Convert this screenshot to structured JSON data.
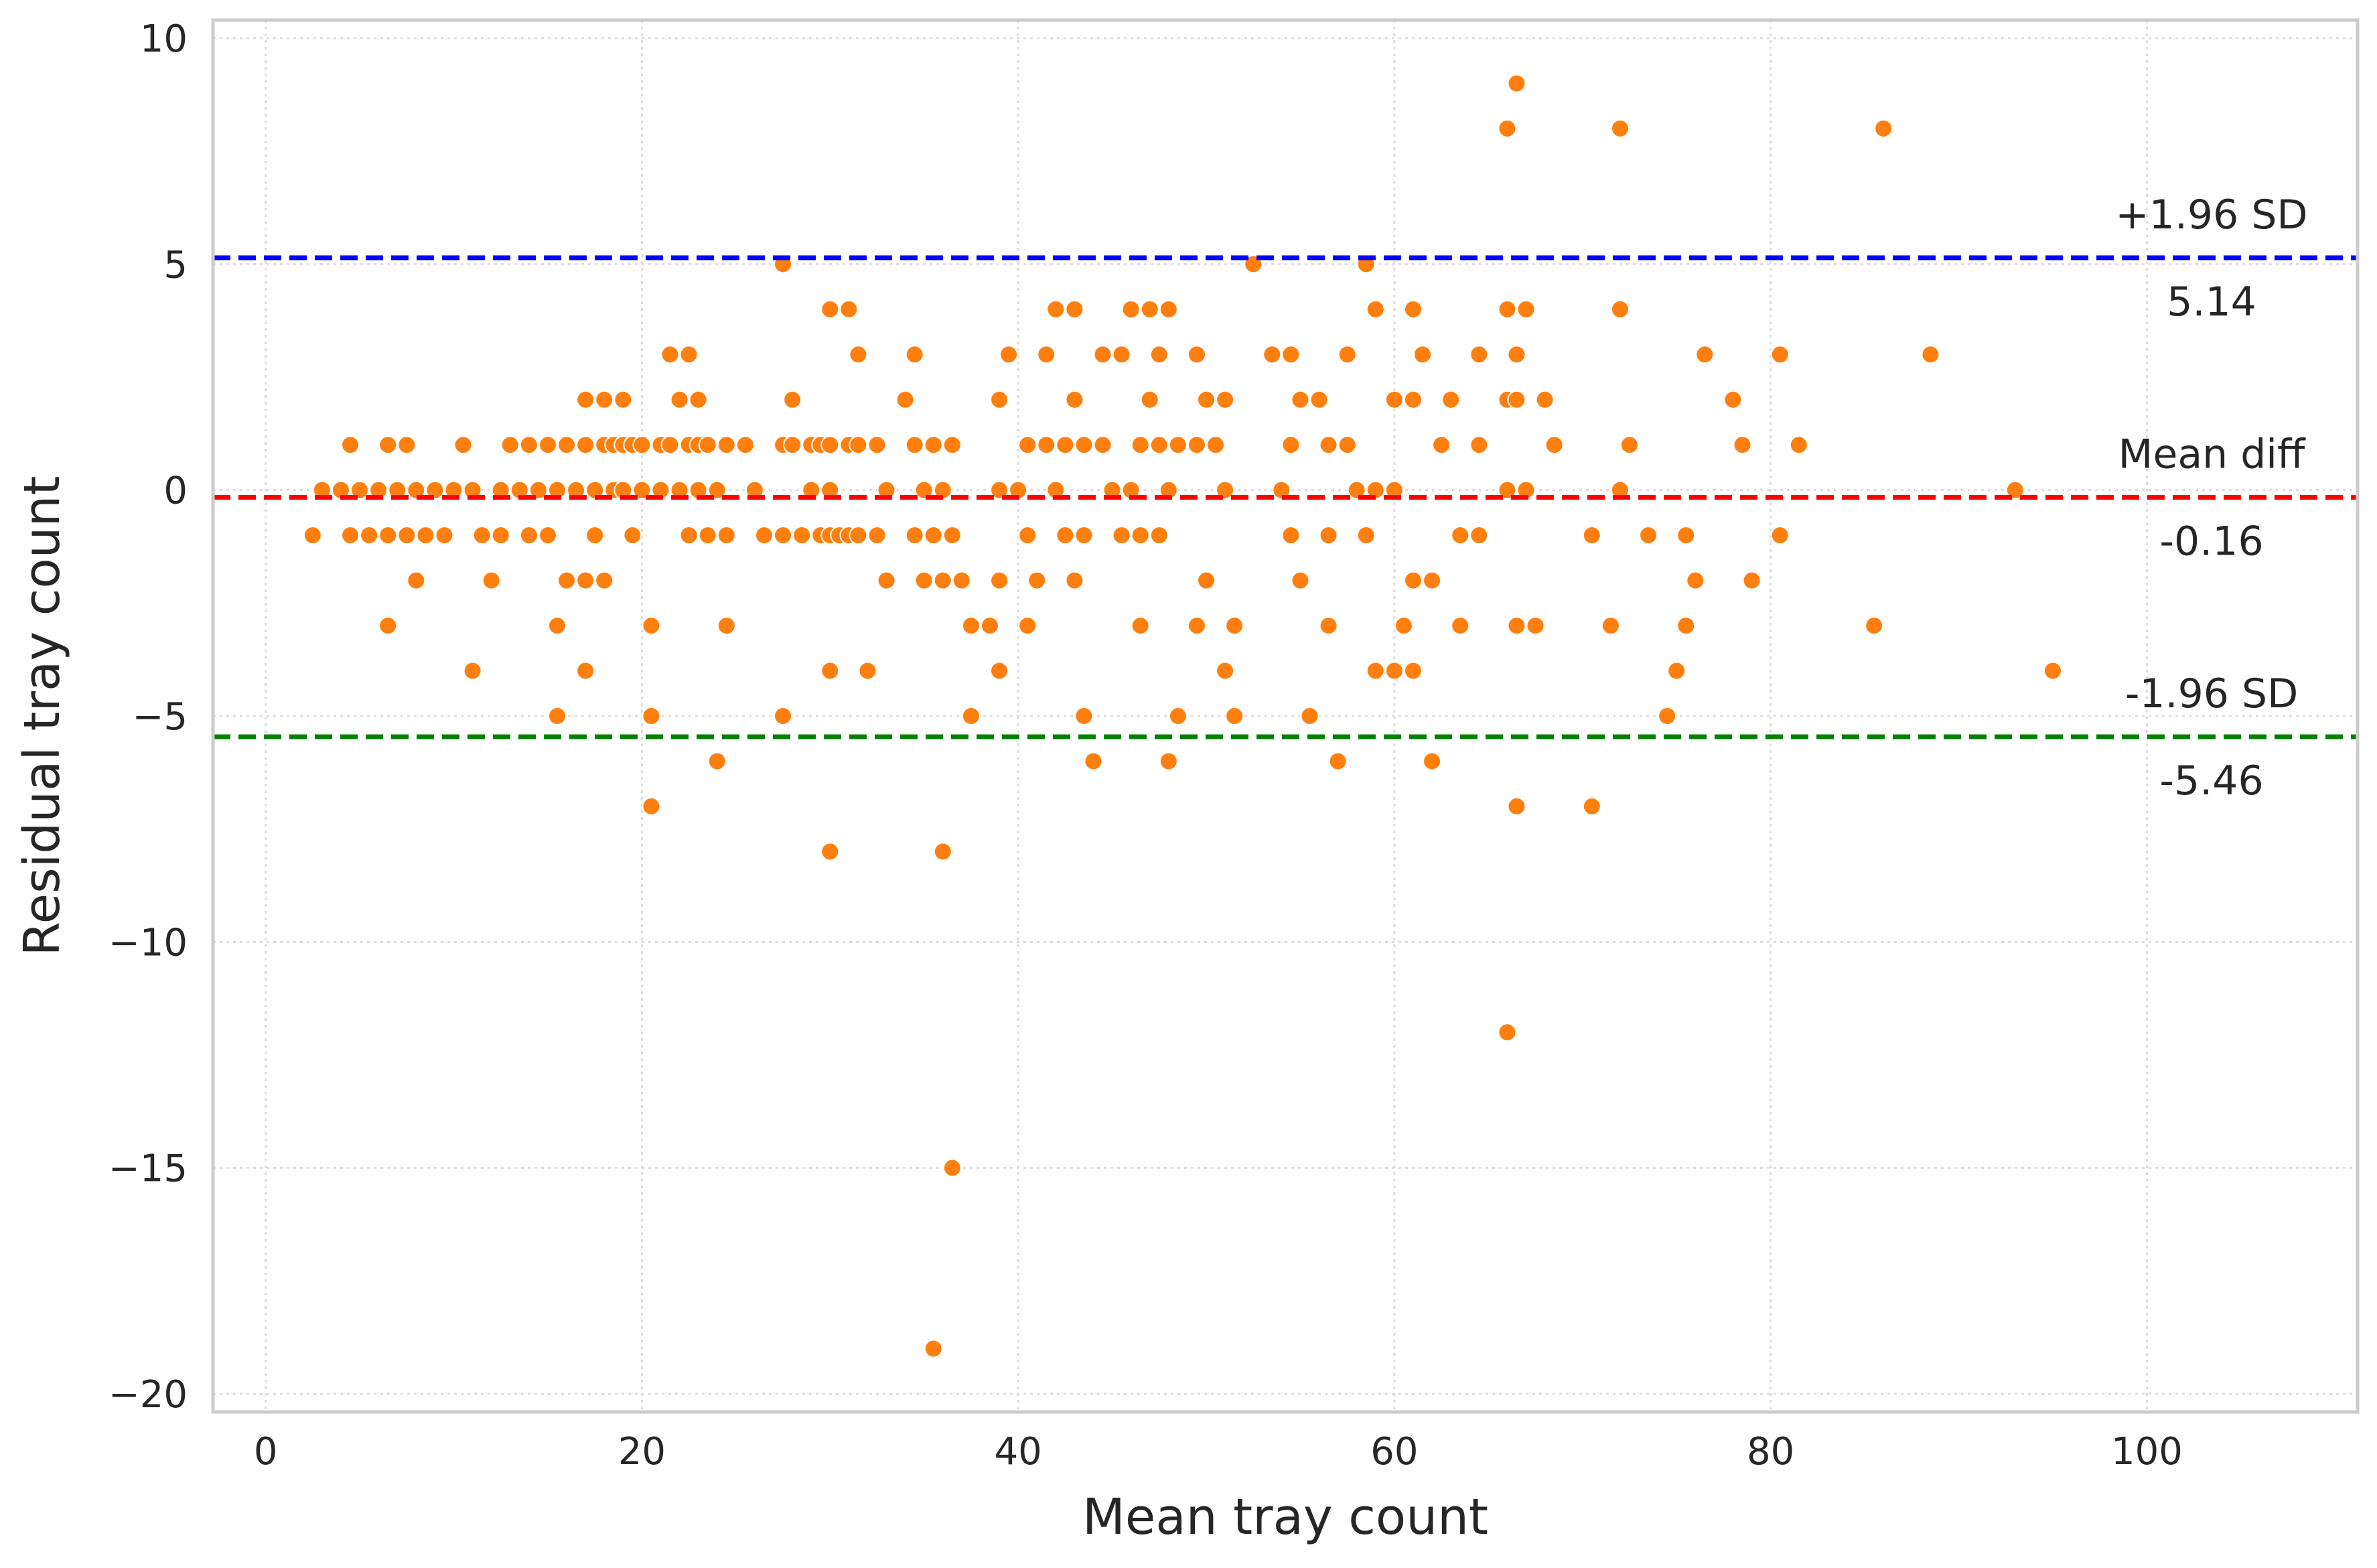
{
  "chart_data": {
    "type": "scatter",
    "title": "",
    "xlabel": "Mean tray count",
    "ylabel": "Residual tray count",
    "xlim": [
      -2.8,
      111.2
    ],
    "ylim": [
      -20.4,
      10.4
    ],
    "x_ticks": [
      0,
      20,
      40,
      60,
      80,
      100
    ],
    "y_ticks": [
      -20,
      -15,
      -10,
      -5,
      0,
      5,
      10
    ],
    "x_tick_labels": [
      "0",
      "20",
      "40",
      "60",
      "80",
      "100"
    ],
    "y_tick_labels": [
      "−20",
      "−15",
      "−10",
      "−5",
      "0",
      "5",
      "10"
    ],
    "grid": true,
    "marker_color": "#ff7f0e",
    "reference_lines": [
      {
        "label": "+1.96 SD",
        "value_text": "5.14",
        "y": 5.14,
        "color": "#0000ff",
        "style": "dashed"
      },
      {
        "label": "Mean diff",
        "value_text": "-0.16",
        "y": -0.16,
        "color": "#ff0000",
        "style": "dashed"
      },
      {
        "label": "-1.96 SD",
        "value_text": "-5.46",
        "y": -5.46,
        "color": "#008000",
        "style": "dashed"
      }
    ],
    "points": [
      [
        2.5,
        -1
      ],
      [
        3,
        0
      ],
      [
        4,
        0
      ],
      [
        4.5,
        1
      ],
      [
        4.5,
        -1
      ],
      [
        5,
        0
      ],
      [
        5.5,
        -1
      ],
      [
        6,
        0
      ],
      [
        6.5,
        1
      ],
      [
        6.5,
        -1
      ],
      [
        6.5,
        -3
      ],
      [
        7,
        0
      ],
      [
        7.5,
        1
      ],
      [
        7.5,
        -1
      ],
      [
        8,
        0
      ],
      [
        8,
        -2
      ],
      [
        8.5,
        -1
      ],
      [
        9,
        0
      ],
      [
        9.5,
        -1
      ],
      [
        10,
        0
      ],
      [
        10.5,
        1
      ],
      [
        11,
        0
      ],
      [
        11,
        -4
      ],
      [
        11.5,
        -1
      ],
      [
        12,
        -2
      ],
      [
        12.5,
        -1
      ],
      [
        12.5,
        0
      ],
      [
        13,
        1
      ],
      [
        13.5,
        0
      ],
      [
        14,
        1
      ],
      [
        14,
        -1
      ],
      [
        14.5,
        0
      ],
      [
        15,
        1
      ],
      [
        15,
        -1
      ],
      [
        15.5,
        0
      ],
      [
        15.5,
        -3
      ],
      [
        15.5,
        -5
      ],
      [
        16,
        1
      ],
      [
        16,
        -2
      ],
      [
        16.5,
        0
      ],
      [
        17,
        1
      ],
      [
        17,
        2
      ],
      [
        17,
        -2
      ],
      [
        17,
        -4
      ],
      [
        17.5,
        -1
      ],
      [
        17.5,
        0
      ],
      [
        18,
        1
      ],
      [
        18,
        2
      ],
      [
        18,
        -2
      ],
      [
        18.5,
        0
      ],
      [
        18.5,
        1
      ],
      [
        19,
        1
      ],
      [
        19,
        2
      ],
      [
        19,
        0
      ],
      [
        19.5,
        1
      ],
      [
        19.5,
        -1
      ],
      [
        20,
        0
      ],
      [
        20,
        1
      ],
      [
        20.5,
        -3
      ],
      [
        20.5,
        -5
      ],
      [
        20.5,
        -7
      ],
      [
        21,
        1
      ],
      [
        21,
        0
      ],
      [
        21.5,
        3
      ],
      [
        21.5,
        1
      ],
      [
        22,
        2
      ],
      [
        22,
        0
      ],
      [
        22.5,
        3
      ],
      [
        22.5,
        1
      ],
      [
        22.5,
        -1
      ],
      [
        23,
        2
      ],
      [
        23,
        1
      ],
      [
        23,
        0
      ],
      [
        23.5,
        -1
      ],
      [
        23.5,
        1
      ],
      [
        24,
        0
      ],
      [
        24,
        -6
      ],
      [
        24.5,
        1
      ],
      [
        24.5,
        -1
      ],
      [
        24.5,
        -3
      ],
      [
        25.5,
        1
      ],
      [
        26,
        0
      ],
      [
        26.5,
        -1
      ],
      [
        27.5,
        5
      ],
      [
        27.5,
        1
      ],
      [
        27.5,
        -1
      ],
      [
        27.5,
        -5
      ],
      [
        28,
        1
      ],
      [
        28,
        2
      ],
      [
        28.5,
        -1
      ],
      [
        29,
        1
      ],
      [
        29,
        0
      ],
      [
        29.5,
        1
      ],
      [
        29.5,
        -1
      ],
      [
        30,
        4
      ],
      [
        30,
        1
      ],
      [
        30,
        0
      ],
      [
        30,
        -1
      ],
      [
        30,
        -4
      ],
      [
        30,
        -8
      ],
      [
        30.5,
        -1
      ],
      [
        31,
        4
      ],
      [
        31,
        1
      ],
      [
        31,
        -1
      ],
      [
        31.5,
        3
      ],
      [
        31.5,
        1
      ],
      [
        31.5,
        -1
      ],
      [
        32,
        -4
      ],
      [
        32.5,
        1
      ],
      [
        32.5,
        -1
      ],
      [
        33,
        0
      ],
      [
        33,
        -2
      ],
      [
        34,
        2
      ],
      [
        34.5,
        3
      ],
      [
        34.5,
        1
      ],
      [
        34.5,
        -1
      ],
      [
        35,
        0
      ],
      [
        35,
        -2
      ],
      [
        35.5,
        1
      ],
      [
        35.5,
        -1
      ],
      [
        35.5,
        -19
      ],
      [
        36,
        0
      ],
      [
        36,
        -2
      ],
      [
        36,
        -8
      ],
      [
        36.5,
        1
      ],
      [
        36.5,
        -1
      ],
      [
        36.5,
        -15
      ],
      [
        37,
        -2
      ],
      [
        37.5,
        -3
      ],
      [
        37.5,
        -5
      ],
      [
        38.5,
        -3
      ],
      [
        39,
        2
      ],
      [
        39,
        0
      ],
      [
        39,
        -2
      ],
      [
        39,
        -4
      ],
      [
        39.5,
        3
      ],
      [
        40,
        0
      ],
      [
        40.5,
        1
      ],
      [
        40.5,
        -1
      ],
      [
        40.5,
        -3
      ],
      [
        41,
        -2
      ],
      [
        41.5,
        3
      ],
      [
        41.5,
        1
      ],
      [
        42,
        4
      ],
      [
        42,
        0
      ],
      [
        42.5,
        1
      ],
      [
        42.5,
        -1
      ],
      [
        43,
        4
      ],
      [
        43,
        2
      ],
      [
        43,
        -2
      ],
      [
        43.5,
        1
      ],
      [
        43.5,
        -1
      ],
      [
        43.5,
        -5
      ],
      [
        44,
        -6
      ],
      [
        44.5,
        1
      ],
      [
        44.5,
        3
      ],
      [
        45,
        0
      ],
      [
        45.5,
        3
      ],
      [
        45.5,
        -1
      ],
      [
        46,
        4
      ],
      [
        46,
        0
      ],
      [
        46.5,
        1
      ],
      [
        46.5,
        -1
      ],
      [
        46.5,
        -3
      ],
      [
        47,
        4
      ],
      [
        47,
        2
      ],
      [
        47.5,
        3
      ],
      [
        47.5,
        1
      ],
      [
        47.5,
        -1
      ],
      [
        48,
        4
      ],
      [
        48,
        0
      ],
      [
        48,
        -6
      ],
      [
        48.5,
        1
      ],
      [
        48.5,
        -5
      ],
      [
        49.5,
        3
      ],
      [
        49.5,
        1
      ],
      [
        49.5,
        -3
      ],
      [
        50,
        2
      ],
      [
        50,
        -2
      ],
      [
        50.5,
        1
      ],
      [
        51,
        2
      ],
      [
        51,
        0
      ],
      [
        51,
        -4
      ],
      [
        51.5,
        -3
      ],
      [
        51.5,
        -5
      ],
      [
        52.5,
        5
      ],
      [
        53.5,
        3
      ],
      [
        54,
        0
      ],
      [
        54.5,
        3
      ],
      [
        54.5,
        1
      ],
      [
        54.5,
        -1
      ],
      [
        55,
        2
      ],
      [
        55,
        -2
      ],
      [
        55.5,
        -5
      ],
      [
        56,
        2
      ],
      [
        56.5,
        1
      ],
      [
        56.5,
        -1
      ],
      [
        56.5,
        -3
      ],
      [
        57,
        -6
      ],
      [
        57.5,
        3
      ],
      [
        57.5,
        1
      ],
      [
        58,
        0
      ],
      [
        58.5,
        5
      ],
      [
        58.5,
        -1
      ],
      [
        59,
        4
      ],
      [
        59,
        0
      ],
      [
        59,
        -4
      ],
      [
        60,
        2
      ],
      [
        60,
        0
      ],
      [
        60,
        -4
      ],
      [
        60.5,
        -3
      ],
      [
        61,
        4
      ],
      [
        61,
        2
      ],
      [
        61,
        -2
      ],
      [
        61,
        -4
      ],
      [
        61.5,
        3
      ],
      [
        62,
        -2
      ],
      [
        62,
        -6
      ],
      [
        62.5,
        1
      ],
      [
        63,
        2
      ],
      [
        63.5,
        -1
      ],
      [
        63.5,
        -3
      ],
      [
        64.5,
        3
      ],
      [
        64.5,
        1
      ],
      [
        64.5,
        -1
      ],
      [
        66,
        8
      ],
      [
        66,
        4
      ],
      [
        66,
        2
      ],
      [
        66,
        0
      ],
      [
        66,
        -12
      ],
      [
        66.5,
        9
      ],
      [
        66.5,
        3
      ],
      [
        66.5,
        2
      ],
      [
        66.5,
        -3
      ],
      [
        66.5,
        -7
      ],
      [
        67,
        4
      ],
      [
        67,
        0
      ],
      [
        67.5,
        -3
      ],
      [
        68,
        2
      ],
      [
        68.5,
        1
      ],
      [
        70.5,
        -1
      ],
      [
        70.5,
        -7
      ],
      [
        71.5,
        -3
      ],
      [
        72,
        8
      ],
      [
        72,
        4
      ],
      [
        72,
        0
      ],
      [
        72.5,
        1
      ],
      [
        73.5,
        -1
      ],
      [
        74.5,
        -5
      ],
      [
        75,
        -4
      ],
      [
        75.5,
        -1
      ],
      [
        75.5,
        -3
      ],
      [
        76,
        -2
      ],
      [
        76.5,
        3
      ],
      [
        78,
        2
      ],
      [
        78.5,
        1
      ],
      [
        79,
        -2
      ],
      [
        80.5,
        3
      ],
      [
        80.5,
        -1
      ],
      [
        81.5,
        1
      ],
      [
        85.5,
        -3
      ],
      [
        86,
        8
      ],
      [
        88.5,
        3
      ],
      [
        93,
        0
      ],
      [
        95,
        -4
      ]
    ]
  }
}
